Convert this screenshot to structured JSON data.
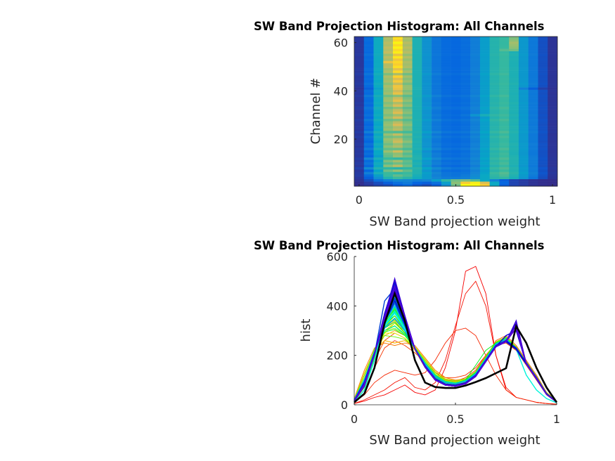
{
  "figure": {
    "background": "#ffffff"
  },
  "chart_data": [
    {
      "type": "heatmap",
      "title": "SW Band Projection Histogram: All Channels",
      "xlabel": "SW Band projection weight",
      "ylabel": "Channel #",
      "xlim": [
        -0.025,
        1.025
      ],
      "ylim": [
        0.5,
        62.5
      ],
      "xticks": [
        0,
        0.5,
        1
      ],
      "xtick_labels": [
        "0",
        "0.5",
        "1"
      ],
      "yticks": [
        20,
        40,
        60
      ],
      "ytick_labels": [
        "20",
        "40",
        "60"
      ],
      "colormap": "parula",
      "clim": [
        0,
        520
      ],
      "x_bins": [
        0,
        0.05,
        0.1,
        0.15,
        0.2,
        0.25,
        0.3,
        0.35,
        0.4,
        0.45,
        0.5,
        0.55,
        0.6,
        0.65,
        0.7,
        0.75,
        0.8,
        0.85,
        0.9,
        0.95,
        1
      ],
      "source": "channel_histograms"
    },
    {
      "type": "line",
      "title": "SW Band Projection Histogram: All Channels",
      "xlabel": "SW Band projection weight",
      "ylabel": "hist",
      "xlim": [
        0,
        1
      ],
      "ylim": [
        0,
        600
      ],
      "xticks": [
        0,
        0.5,
        1
      ],
      "xtick_labels": [
        "0",
        "0.5",
        "1"
      ],
      "yticks": [
        0,
        200,
        400,
        600
      ],
      "ytick_labels": [
        "0",
        "200",
        "400",
        "600"
      ],
      "colormap": "jet-like by channel",
      "source": "channel_histograms",
      "mean_line": {
        "name": "mean",
        "color": "#000000",
        "values": [
          10,
          45,
          150,
          330,
          450,
          340,
          180,
          90,
          72,
          68,
          68,
          78,
          92,
          108,
          128,
          148,
          318,
          250,
          150,
          70,
          10
        ]
      }
    }
  ],
  "channel_histograms": {
    "x": [
      0,
      0.05,
      0.1,
      0.15,
      0.2,
      0.25,
      0.3,
      0.35,
      0.4,
      0.45,
      0.5,
      0.55,
      0.6,
      0.65,
      0.7,
      0.75,
      0.8,
      0.85,
      0.9,
      0.95,
      1
    ],
    "rows": [
      [
        5,
        15,
        30,
        40,
        60,
        80,
        50,
        40,
        60,
        150,
        300,
        540,
        560,
        450,
        200,
        60,
        30,
        20,
        10,
        5,
        2
      ],
      [
        5,
        20,
        40,
        60,
        90,
        110,
        70,
        60,
        90,
        180,
        320,
        450,
        500,
        400,
        200,
        70,
        30,
        20,
        10,
        5,
        2
      ],
      [
        10,
        40,
        90,
        120,
        140,
        130,
        120,
        130,
        180,
        250,
        300,
        310,
        280,
        200,
        120,
        60,
        30,
        20,
        10,
        5,
        3
      ],
      [
        15,
        60,
        150,
        230,
        260,
        240,
        210,
        170,
        130,
        110,
        110,
        120,
        150,
        200,
        240,
        250,
        220,
        160,
        100,
        40,
        10
      ],
      [
        20,
        80,
        180,
        260,
        290,
        270,
        220,
        170,
        120,
        100,
        95,
        110,
        140,
        200,
        250,
        270,
        230,
        170,
        110,
        45,
        12
      ],
      [
        18,
        120,
        220,
        260,
        250,
        260,
        230,
        180,
        130,
        100,
        95,
        100,
        130,
        190,
        260,
        280,
        240,
        180,
        120,
        50,
        15
      ],
      [
        15,
        70,
        190,
        300,
        330,
        290,
        230,
        160,
        110,
        85,
        80,
        90,
        120,
        180,
        240,
        260,
        230,
        170,
        110,
        45,
        12
      ],
      [
        25,
        140,
        230,
        250,
        240,
        250,
        240,
        190,
        140,
        110,
        100,
        105,
        135,
        195,
        255,
        275,
        235,
        175,
        115,
        50,
        15
      ],
      [
        15,
        75,
        200,
        320,
        360,
        300,
        220,
        150,
        100,
        80,
        75,
        85,
        115,
        175,
        235,
        255,
        225,
        165,
        105,
        42,
        11
      ],
      [
        20,
        100,
        210,
        280,
        300,
        280,
        230,
        170,
        120,
        95,
        90,
        100,
        130,
        190,
        250,
        270,
        230,
        170,
        110,
        45,
        12
      ],
      [
        15,
        80,
        190,
        310,
        340,
        290,
        220,
        160,
        110,
        85,
        80,
        90,
        120,
        180,
        240,
        260,
        230,
        170,
        110,
        45,
        12
      ],
      [
        22,
        130,
        220,
        260,
        250,
        260,
        235,
        185,
        135,
        105,
        98,
        104,
        134,
        194,
        254,
        274,
        234,
        174,
        114,
        48,
        14
      ],
      [
        15,
        70,
        180,
        290,
        330,
        300,
        230,
        160,
        110,
        85,
        80,
        90,
        120,
        180,
        240,
        260,
        230,
        170,
        110,
        45,
        12
      ],
      [
        18,
        90,
        200,
        300,
        320,
        280,
        225,
        165,
        115,
        90,
        85,
        95,
        125,
        185,
        245,
        265,
        225,
        165,
        105,
        44,
        12
      ],
      [
        15,
        75,
        195,
        330,
        380,
        310,
        220,
        150,
        100,
        80,
        76,
        86,
        116,
        176,
        236,
        256,
        226,
        166,
        106,
        43,
        11
      ],
      [
        20,
        110,
        220,
        290,
        290,
        270,
        230,
        175,
        125,
        98,
        92,
        102,
        132,
        192,
        252,
        272,
        232,
        172,
        112,
        47,
        13
      ],
      [
        15,
        80,
        200,
        320,
        350,
        300,
        225,
        155,
        105,
        82,
        78,
        88,
        118,
        178,
        238,
        258,
        228,
        168,
        108,
        44,
        12
      ],
      [
        18,
        95,
        210,
        300,
        330,
        290,
        225,
        160,
        110,
        86,
        82,
        92,
        122,
        182,
        242,
        262,
        232,
        172,
        112,
        46,
        12
      ],
      [
        15,
        70,
        190,
        320,
        380,
        320,
        230,
        155,
        100,
        80,
        75,
        85,
        115,
        175,
        235,
        255,
        225,
        165,
        105,
        42,
        11
      ],
      [
        16,
        85,
        205,
        330,
        360,
        300,
        225,
        155,
        105,
        82,
        78,
        88,
        118,
        178,
        238,
        258,
        228,
        168,
        108,
        44,
        12
      ],
      [
        20,
        100,
        215,
        300,
        310,
        285,
        230,
        170,
        120,
        94,
        88,
        98,
        128,
        188,
        248,
        268,
        228,
        168,
        108,
        45,
        12
      ],
      [
        15,
        75,
        200,
        330,
        370,
        310,
        225,
        155,
        102,
        80,
        76,
        86,
        116,
        176,
        236,
        256,
        226,
        166,
        106,
        43,
        11
      ],
      [
        22,
        120,
        225,
        280,
        275,
        265,
        232,
        180,
        130,
        102,
        96,
        104,
        134,
        194,
        254,
        274,
        234,
        174,
        114,
        48,
        14
      ],
      [
        15,
        78,
        198,
        325,
        360,
        305,
        226,
        156,
        104,
        82,
        78,
        88,
        118,
        178,
        238,
        258,
        228,
        168,
        108,
        44,
        12
      ],
      [
        17,
        88,
        205,
        315,
        345,
        298,
        225,
        160,
        108,
        84,
        80,
        90,
        120,
        180,
        240,
        260,
        230,
        170,
        110,
        45,
        12
      ],
      [
        15,
        72,
        192,
        330,
        390,
        320,
        228,
        156,
        102,
        80,
        75,
        85,
        115,
        175,
        235,
        255,
        225,
        165,
        105,
        42,
        11
      ],
      [
        16,
        82,
        200,
        320,
        360,
        305,
        226,
        157,
        104,
        82,
        78,
        88,
        118,
        178,
        238,
        258,
        228,
        168,
        108,
        44,
        12
      ],
      [
        20,
        105,
        215,
        295,
        305,
        280,
        230,
        172,
        122,
        96,
        90,
        100,
        130,
        190,
        250,
        270,
        230,
        170,
        110,
        46,
        12
      ],
      [
        15,
        75,
        198,
        335,
        385,
        315,
        226,
        155,
        101,
        80,
        75,
        85,
        115,
        175,
        235,
        255,
        225,
        165,
        105,
        42,
        11
      ],
      [
        18,
        92,
        208,
        310,
        335,
        292,
        226,
        162,
        110,
        86,
        82,
        100,
        160,
        220,
        250,
        265,
        230,
        170,
        110,
        45,
        12
      ],
      [
        15,
        78,
        200,
        330,
        400,
        320,
        226,
        154,
        100,
        80,
        75,
        85,
        115,
        175,
        235,
        255,
        225,
        165,
        105,
        42,
        11
      ],
      [
        16,
        84,
        204,
        325,
        370,
        306,
        225,
        156,
        103,
        81,
        77,
        87,
        117,
        177,
        237,
        257,
        227,
        167,
        107,
        43,
        11
      ],
      [
        20,
        100,
        214,
        300,
        320,
        286,
        228,
        168,
        118,
        92,
        87,
        97,
        127,
        187,
        247,
        267,
        227,
        167,
        107,
        45,
        12
      ],
      [
        15,
        76,
        200,
        335,
        395,
        318,
        226,
        154,
        101,
        80,
        75,
        85,
        115,
        175,
        235,
        255,
        225,
        165,
        105,
        42,
        11
      ],
      [
        18,
        90,
        208,
        315,
        350,
        300,
        226,
        160,
        107,
        84,
        80,
        90,
        120,
        180,
        240,
        260,
        230,
        170,
        110,
        45,
        12
      ],
      [
        15,
        78,
        202,
        338,
        410,
        325,
        226,
        153,
        100,
        80,
        75,
        85,
        115,
        175,
        235,
        255,
        225,
        165,
        105,
        42,
        11
      ],
      [
        16,
        84,
        205,
        328,
        375,
        308,
        225,
        155,
        103,
        81,
        77,
        87,
        117,
        177,
        237,
        257,
        227,
        167,
        107,
        43,
        11
      ],
      [
        20,
        105,
        216,
        300,
        318,
        284,
        229,
        170,
        120,
        94,
        88,
        98,
        128,
        188,
        248,
        268,
        228,
        168,
        108,
        45,
        12
      ],
      [
        15,
        76,
        200,
        340,
        420,
        328,
        226,
        153,
        100,
        80,
        75,
        85,
        115,
        175,
        235,
        255,
        225,
        165,
        105,
        42,
        11
      ],
      [
        17,
        86,
        206,
        325,
        380,
        310,
        226,
        156,
        104,
        82,
        78,
        88,
        118,
        178,
        238,
        258,
        228,
        168,
        108,
        44,
        12
      ],
      [
        10,
        60,
        180,
        330,
        420,
        330,
        230,
        155,
        100,
        80,
        75,
        85,
        115,
        175,
        235,
        255,
        225,
        120,
        60,
        25,
        8
      ],
      [
        15,
        78,
        202,
        345,
        430,
        330,
        226,
        153,
        100,
        80,
        75,
        85,
        115,
        175,
        235,
        255,
        225,
        165,
        105,
        42,
        11
      ],
      [
        18,
        92,
        210,
        320,
        370,
        305,
        226,
        160,
        107,
        84,
        80,
        90,
        120,
        180,
        240,
        260,
        230,
        170,
        110,
        45,
        12
      ],
      [
        15,
        76,
        200,
        345,
        440,
        335,
        226,
        152,
        100,
        80,
        75,
        85,
        115,
        175,
        235,
        255,
        225,
        165,
        105,
        42,
        11
      ],
      [
        16,
        84,
        206,
        335,
        400,
        318,
        226,
        155,
        103,
        81,
        77,
        87,
        117,
        177,
        237,
        257,
        227,
        167,
        107,
        43,
        11
      ],
      [
        15,
        78,
        204,
        350,
        460,
        340,
        226,
        152,
        100,
        80,
        75,
        85,
        115,
        175,
        235,
        255,
        225,
        165,
        105,
        42,
        11
      ],
      [
        20,
        100,
        215,
        310,
        350,
        300,
        228,
        166,
        114,
        90,
        85,
        95,
        125,
        185,
        245,
        265,
        225,
        165,
        105,
        44,
        12
      ],
      [
        15,
        76,
        202,
        350,
        470,
        345,
        226,
        152,
        100,
        80,
        75,
        85,
        115,
        175,
        235,
        255,
        225,
        165,
        105,
        42,
        11
      ],
      [
        17,
        88,
        208,
        335,
        410,
        320,
        226,
        156,
        104,
        82,
        78,
        88,
        118,
        178,
        238,
        258,
        228,
        168,
        108,
        44,
        12
      ],
      [
        15,
        78,
        204,
        360,
        480,
        350,
        226,
        152,
        100,
        80,
        75,
        85,
        115,
        175,
        235,
        255,
        225,
        165,
        105,
        42,
        11
      ],
      [
        15,
        80,
        205,
        355,
        450,
        340,
        226,
        153,
        100,
        80,
        75,
        85,
        115,
        175,
        235,
        255,
        225,
        165,
        105,
        42,
        11
      ],
      [
        15,
        76,
        204,
        420,
        470,
        350,
        226,
        152,
        100,
        80,
        75,
        85,
        115,
        175,
        235,
        255,
        225,
        165,
        105,
        42,
        11
      ],
      [
        16,
        84,
        206,
        345,
        430,
        330,
        226,
        154,
        102,
        81,
        77,
        87,
        117,
        177,
        237,
        257,
        227,
        167,
        107,
        43,
        11
      ],
      [
        15,
        78,
        205,
        360,
        490,
        355,
        226,
        152,
        100,
        80,
        75,
        85,
        115,
        175,
        235,
        255,
        225,
        165,
        105,
        42,
        11
      ],
      [
        18,
        92,
        210,
        335,
        420,
        325,
        226,
        158,
        106,
        84,
        80,
        90,
        120,
        180,
        240,
        260,
        230,
        170,
        110,
        45,
        12
      ],
      [
        15,
        76,
        205,
        370,
        500,
        360,
        226,
        152,
        100,
        80,
        75,
        85,
        115,
        175,
        235,
        255,
        225,
        165,
        105,
        42,
        11
      ],
      [
        15,
        80,
        206,
        355,
        470,
        345,
        226,
        153,
        100,
        80,
        75,
        85,
        115,
        175,
        235,
        280,
        300,
        165,
        105,
        42,
        11
      ],
      [
        15,
        78,
        205,
        365,
        505,
        360,
        226,
        152,
        100,
        80,
        75,
        85,
        115,
        175,
        235,
        260,
        320,
        165,
        105,
        42,
        11
      ],
      [
        16,
        84,
        206,
        350,
        470,
        345,
        226,
        154,
        102,
        81,
        77,
        87,
        117,
        177,
        237,
        257,
        330,
        167,
        107,
        43,
        11
      ],
      [
        15,
        76,
        205,
        360,
        510,
        360,
        226,
        152,
        100,
        80,
        75,
        85,
        115,
        175,
        235,
        255,
        340,
        165,
        105,
        42,
        11
      ],
      [
        16,
        84,
        206,
        345,
        460,
        340,
        226,
        154,
        102,
        81,
        77,
        87,
        117,
        177,
        237,
        257,
        320,
        167,
        107,
        43,
        11
      ],
      [
        15,
        80,
        205,
        350,
        480,
        350,
        226,
        153,
        100,
        80,
        75,
        85,
        115,
        175,
        235,
        255,
        310,
        165,
        105,
        42,
        11
      ]
    ]
  }
}
